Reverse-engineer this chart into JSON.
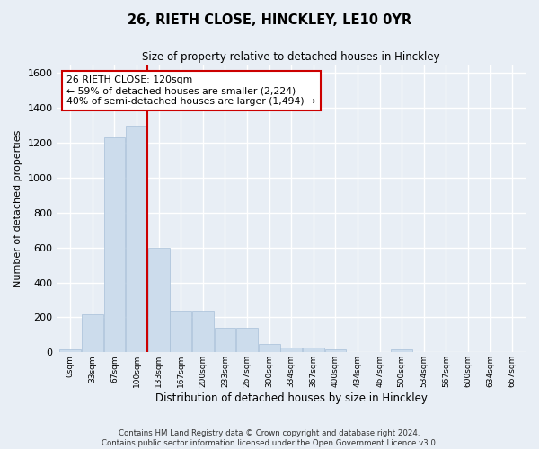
{
  "title_line1": "26, RIETH CLOSE, HINCKLEY, LE10 0YR",
  "title_line2": "Size of property relative to detached houses in Hinckley",
  "xlabel": "Distribution of detached houses by size in Hinckley",
  "ylabel": "Number of detached properties",
  "footnote1": "Contains HM Land Registry data © Crown copyright and database right 2024.",
  "footnote2": "Contains public sector information licensed under the Open Government Licence v3.0.",
  "bin_labels": [
    "0sqm",
    "33sqm",
    "67sqm",
    "100sqm",
    "133sqm",
    "167sqm",
    "200sqm",
    "233sqm",
    "267sqm",
    "300sqm",
    "334sqm",
    "367sqm",
    "400sqm",
    "434sqm",
    "467sqm",
    "500sqm",
    "534sqm",
    "567sqm",
    "600sqm",
    "634sqm",
    "667sqm"
  ],
  "bar_values": [
    15,
    220,
    1230,
    1300,
    600,
    240,
    240,
    140,
    140,
    50,
    25,
    25,
    15,
    0,
    0,
    15,
    0,
    0,
    0,
    0,
    0
  ],
  "bar_color": "#ccdcec",
  "bar_edgecolor": "#a8c0d8",
  "ylim": [
    0,
    1650
  ],
  "yticks": [
    0,
    200,
    400,
    600,
    800,
    1000,
    1200,
    1400,
    1600
  ],
  "vline_x": 3.5,
  "vline_color": "#cc0000",
  "annotation_line1": "26 RIETH CLOSE: 120sqm",
  "annotation_line2": "← 59% of detached houses are smaller (2,224)",
  "annotation_line3": "40% of semi-detached houses are larger (1,494) →",
  "annotation_box_color": "#ffffff",
  "annotation_box_edgecolor": "#cc0000",
  "background_color": "#e8eef5",
  "grid_color": "#ffffff"
}
